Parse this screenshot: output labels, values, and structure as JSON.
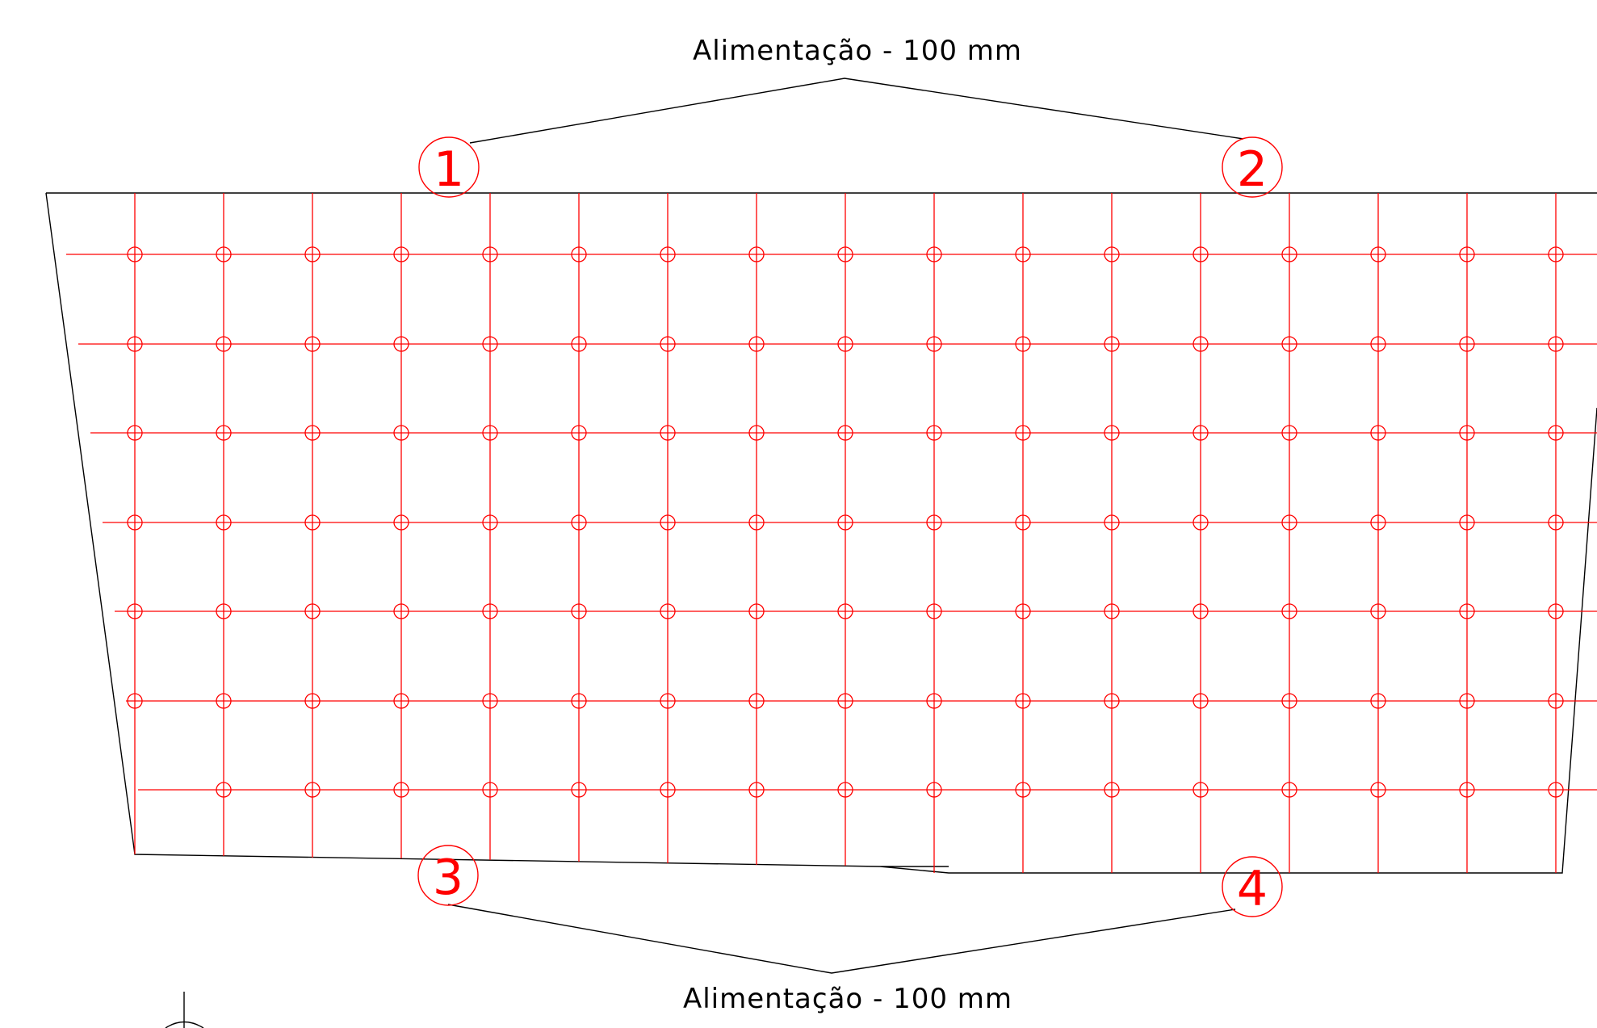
{
  "labels": {
    "top": "Alimentação - 100 mm",
    "bottom": "Alimentação - 100 mm"
  },
  "inlets": [
    "1",
    "2",
    "3",
    "4"
  ],
  "colors": {
    "grid": "#ff0000",
    "outline": "#000000",
    "background": "#ffffff"
  }
}
